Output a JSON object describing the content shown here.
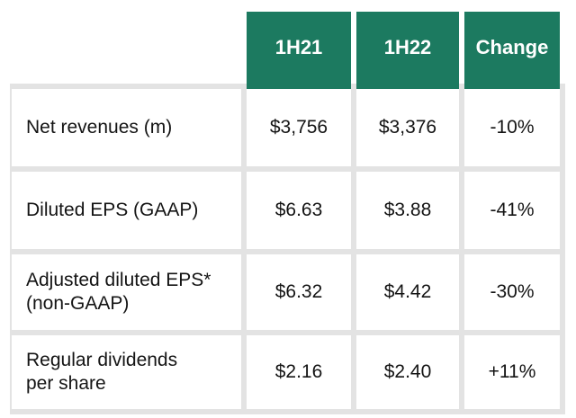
{
  "table": {
    "columns": [
      "1H21",
      "1H22",
      "Change"
    ],
    "rows": [
      {
        "label": "Net revenues (m)",
        "values": [
          "$3,756",
          "$3,376",
          "-10%"
        ]
      },
      {
        "label": "Diluted EPS (GAAP)",
        "values": [
          "$6.63",
          "$3.88",
          "-41%"
        ]
      },
      {
        "label": "Adjusted diluted EPS*\n(non-GAAP)",
        "values": [
          "$6.32",
          "$4.42",
          "-30%"
        ]
      },
      {
        "label": "Regular dividends\nper share",
        "values": [
          "$2.16",
          "$2.40",
          "+11%"
        ]
      }
    ]
  },
  "chart_data": {
    "type": "table",
    "columns": [
      "",
      "1H21",
      "1H22",
      "Change"
    ],
    "rows": [
      [
        "Net revenues (m)",
        "$3,756",
        "$3,376",
        "-10%"
      ],
      [
        "Diluted EPS (GAAP)",
        "$6.63",
        "$3.88",
        "-41%"
      ],
      [
        "Adjusted diluted EPS* (non-GAAP)",
        "$6.32",
        "$4.42",
        "-30%"
      ],
      [
        "Regular dividends per share",
        "$2.16",
        "$2.40",
        "+11%"
      ]
    ]
  },
  "colors": {
    "header_bg": "#1C7A60",
    "header_text": "#FFFFFF",
    "grid_line": "#E3E3E3",
    "text": "#141414",
    "page_bg": "#FFFFFF"
  }
}
